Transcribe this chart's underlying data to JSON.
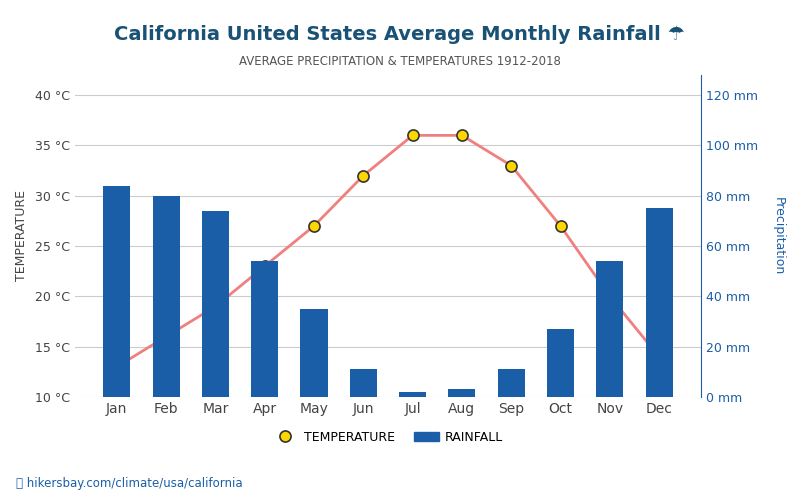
{
  "months": [
    "Jan",
    "Feb",
    "Mar",
    "Apr",
    "May",
    "Jun",
    "Jul",
    "Aug",
    "Sep",
    "Oct",
    "Nov",
    "Dec"
  ],
  "rainfall_mm": [
    84,
    80,
    74,
    54,
    35,
    11,
    2,
    3,
    11,
    27,
    54,
    75
  ],
  "temperature_c": [
    13,
    16,
    19,
    23,
    27,
    32,
    36,
    36,
    33,
    27,
    20,
    14
  ],
  "title": "California United States Average Monthly Rainfall ☂",
  "subtitle": "AVERAGE PRECIPITATION & TEMPERATURES 1912-2018",
  "ylabel_left": "TEMPERATURE",
  "ylabel_right": "Precipitation",
  "ylim_left": [
    10,
    42
  ],
  "ylim_right": [
    0,
    128
  ],
  "yticks_left": [
    10,
    15,
    20,
    25,
    30,
    35,
    40
  ],
  "yticks_right": [
    0,
    20,
    40,
    60,
    80,
    100,
    120
  ],
  "bar_color": "#1B5EA8",
  "line_color": "#F08080",
  "marker_face": "#FFD700",
  "marker_edge": "#333333",
  "title_color": "#1A5276",
  "subtitle_color": "#555555",
  "right_axis_color": "#1B5EA8",
  "left_tick_color": "#444444",
  "watermark_text": "hikersbay.com/climate/usa/california",
  "watermark_color": "#1B5EA8",
  "legend_temp_label": "TEMPERATURE",
  "legend_rain_label": "RAINFALL",
  "background_color": "#FFFFFF",
  "grid_color": "#CCCCCC"
}
